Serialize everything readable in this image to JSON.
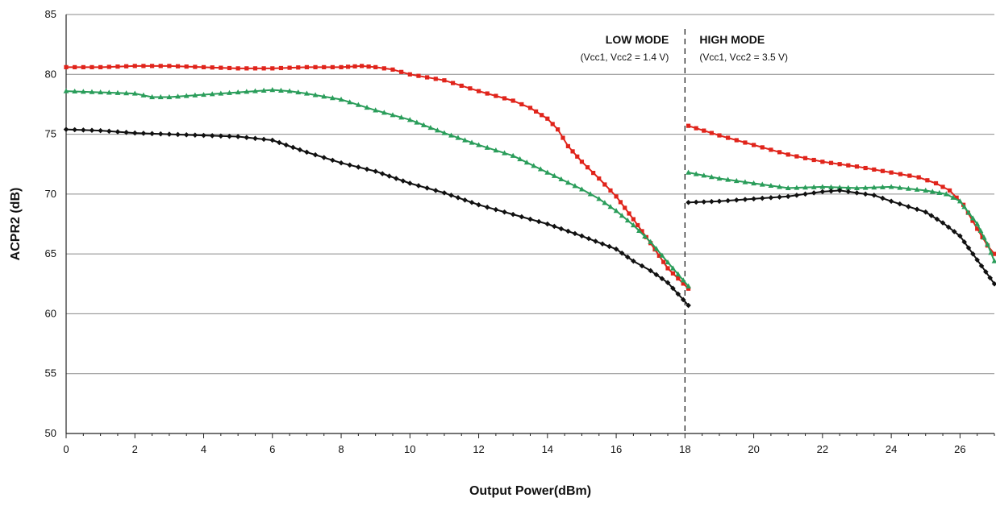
{
  "chart_data": {
    "type": "line",
    "title": "",
    "xlabel": "Output Power(dBm)",
    "ylabel": "ACPR2 (dB)",
    "xlim": [
      0,
      27
    ],
    "ylim": [
      50,
      85
    ],
    "x_ticks": [
      0,
      2,
      4,
      6,
      8,
      10,
      12,
      14,
      16,
      18,
      20,
      22,
      24,
      26
    ],
    "y_ticks": [
      50,
      55,
      60,
      65,
      70,
      75,
      80,
      85
    ],
    "grid": "horizontal",
    "divider_x": 18,
    "annotations": [
      {
        "region": "low",
        "title": "LOW MODE",
        "subtitle": "(Vcc1, Vcc2  = 1.4 V)"
      },
      {
        "region": "high",
        "title": "HIGH MODE",
        "subtitle": "(Vcc1, Vcc2  = 3.5 V)"
      }
    ],
    "series": [
      {
        "color": "#e0241b",
        "marker": "square",
        "segments": [
          {
            "x": [
              0,
              1,
              2,
              3,
              4,
              5,
              6,
              7,
              8,
              8.6,
              9,
              9.5,
              10,
              11,
              12,
              13,
              13.5,
              14,
              14.3,
              14.6,
              15,
              15.5,
              16,
              16.5,
              17,
              17.5,
              18.1
            ],
            "y": [
              80.6,
              80.6,
              80.7,
              80.7,
              80.6,
              80.5,
              80.5,
              80.6,
              80.6,
              80.7,
              80.6,
              80.4,
              80.0,
              79.5,
              78.6,
              77.8,
              77.2,
              76.3,
              75.4,
              74.0,
              72.7,
              71.3,
              69.8,
              67.9,
              65.9,
              63.8,
              62.1
            ]
          },
          {
            "x": [
              18.1,
              19,
              20,
              21,
              22,
              23,
              24,
              24.8,
              25.3,
              25.7,
              26.1,
              26.5,
              26.8,
              27
            ],
            "y": [
              75.7,
              74.9,
              74.1,
              73.3,
              72.7,
              72.3,
              71.8,
              71.4,
              70.9,
              70.3,
              69.1,
              67.1,
              65.7,
              65.0
            ]
          }
        ]
      },
      {
        "color": "#2a9d5a",
        "marker": "triangle",
        "segments": [
          {
            "x": [
              0,
              1,
              2,
              2.5,
              3,
              4,
              5,
              6,
              6.5,
              7,
              8,
              9,
              10,
              11,
              12,
              13,
              14,
              15,
              15.5,
              16,
              16.5,
              17,
              17.5,
              18.1
            ],
            "y": [
              78.6,
              78.5,
              78.4,
              78.1,
              78.1,
              78.3,
              78.5,
              78.7,
              78.6,
              78.4,
              77.9,
              77.0,
              76.2,
              75.1,
              74.1,
              73.2,
              71.8,
              70.4,
              69.6,
              68.6,
              67.4,
              66.0,
              64.3,
              62.3
            ]
          },
          {
            "x": [
              18.1,
              19,
              20,
              21,
              22,
              23,
              24,
              25,
              25.6,
              26,
              26.5,
              26.8,
              27
            ],
            "y": [
              71.8,
              71.3,
              70.9,
              70.5,
              70.6,
              70.5,
              70.6,
              70.3,
              70.0,
              69.4,
              67.5,
              65.8,
              64.4
            ]
          }
        ]
      },
      {
        "color": "#111111",
        "marker": "diamond",
        "segments": [
          {
            "x": [
              0,
              1,
              2,
              3,
              4,
              5,
              6,
              7,
              8,
              9,
              10,
              11,
              12,
              12.5,
              13,
              14,
              15,
              16,
              16.5,
              17,
              17.5,
              18.1
            ],
            "y": [
              75.4,
              75.3,
              75.1,
              75.0,
              74.9,
              74.8,
              74.5,
              73.5,
              72.6,
              71.9,
              70.9,
              70.1,
              69.1,
              68.7,
              68.3,
              67.5,
              66.5,
              65.4,
              64.4,
              63.6,
              62.6,
              60.7
            ]
          },
          {
            "x": [
              18.1,
              19,
              20,
              21,
              22,
              22.5,
              23,
              23.5,
              24,
              25,
              25.5,
              26,
              26.5,
              27
            ],
            "y": [
              69.3,
              69.4,
              69.6,
              69.8,
              70.2,
              70.3,
              70.1,
              69.9,
              69.4,
              68.5,
              67.6,
              66.5,
              64.5,
              62.5
            ]
          }
        ]
      }
    ]
  }
}
